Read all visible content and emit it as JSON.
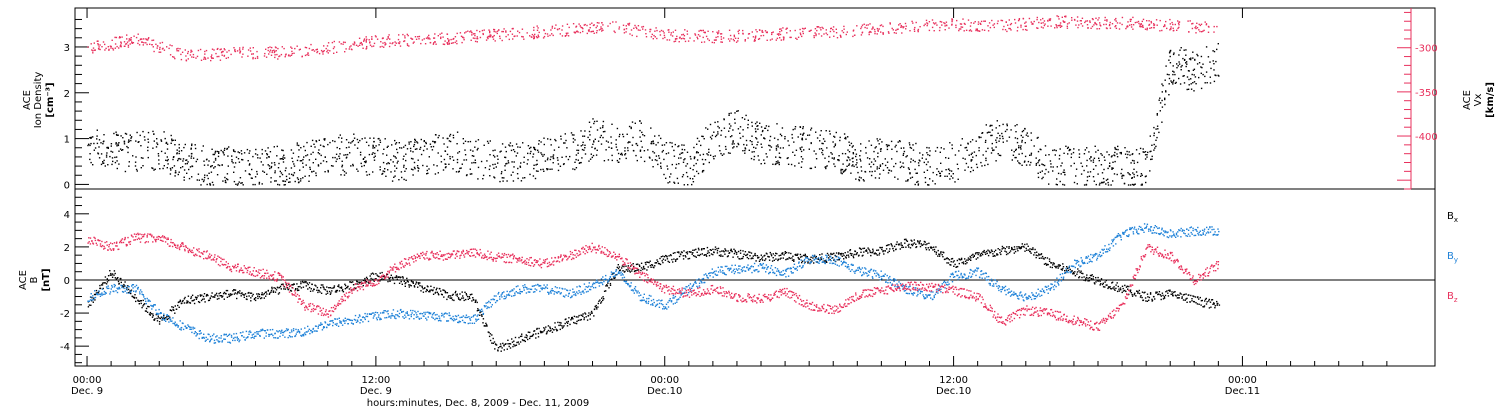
{
  "figure": {
    "x_axis_label": "hours:minutes, Dec. 8, 2009 - Dec. 11, 2009",
    "time_ticks": [
      {
        "time": "00:00",
        "date": "Dec. 9"
      },
      {
        "time": "12:00",
        "date": "Dec. 9"
      },
      {
        "time": "00:00",
        "date": "Dec.10"
      },
      {
        "time": "12:00",
        "date": "Dec.10"
      },
      {
        "time": "00:00",
        "date": "Dec.11"
      }
    ]
  },
  "colors": {
    "black": "#000000",
    "red": "#e8305c",
    "blue": "#1f82d8"
  },
  "chart_data": [
    {
      "type": "scatter",
      "panel": "top",
      "xlabel": "hours:minutes, Dec. 8, 2009 - Dec. 11, 2009",
      "x_unit": "hours since Dec. 9 00:00",
      "xlim": [
        -0.5,
        56
      ],
      "grid": false,
      "left_axis": {
        "ylabel": [
          "ACE",
          "Ion Density",
          "[cm⁻³]"
        ],
        "ylim": [
          -0.1,
          3.85
        ],
        "ticks": [
          0,
          1,
          2,
          3
        ],
        "tick_labels": [
          "0",
          "1",
          "2",
          "3"
        ]
      },
      "right_axis": {
        "ylabel": [
          "ACE",
          "Vx",
          "[km/s]"
        ],
        "ylim": [
          -460,
          -255
        ],
        "ticks": [
          -300,
          -350,
          -400
        ],
        "tick_labels": [
          "-300",
          "-350",
          "-400"
        ],
        "color": "#e8305c"
      },
      "series": [
        {
          "color": "#000000",
          "axis": "left",
          "x": [
            0,
            1,
            2,
            3,
            4,
            5,
            6,
            7,
            8,
            9,
            10,
            11,
            12,
            13,
            14,
            15,
            16,
            17,
            18,
            19,
            20,
            21,
            22,
            23,
            24,
            25,
            26,
            27,
            28,
            29,
            30,
            31,
            32,
            33,
            34,
            35,
            36,
            37,
            38,
            39,
            40,
            41,
            42,
            43,
            44,
            45,
            46,
            47
          ],
          "values": [
            0.9,
            0.8,
            0.7,
            0.8,
            0.5,
            0.4,
            0.4,
            0.4,
            0.4,
            0.5,
            0.6,
            0.7,
            0.6,
            0.5,
            0.6,
            0.8,
            0.6,
            0.5,
            0.5,
            0.6,
            0.7,
            1.0,
            0.9,
            1.0,
            0.5,
            0.4,
            1.0,
            1.2,
            0.9,
            0.9,
            0.8,
            0.8,
            0.5,
            0.6,
            0.5,
            0.4,
            0.5,
            0.8,
            1.0,
            0.8,
            0.4,
            0.4,
            0.4,
            0.4,
            0.4,
            2.6,
            2.5,
            2.7
          ]
        },
        {
          "color": "#e8305c",
          "axis": "right",
          "x": [
            0,
            2,
            4,
            6,
            8,
            10,
            12,
            14,
            16,
            18,
            20,
            22,
            24,
            26,
            28,
            30,
            32,
            34,
            36,
            38,
            40,
            42,
            44,
            46,
            47
          ],
          "values": [
            -300,
            -290,
            -308,
            -306,
            -305,
            -300,
            -292,
            -290,
            -287,
            -283,
            -279,
            -276,
            -285,
            -287,
            -285,
            -282,
            -280,
            -276,
            -273,
            -275,
            -270,
            -271,
            -272,
            -276,
            -275
          ]
        }
      ]
    },
    {
      "type": "scatter",
      "panel": "bottom",
      "xlabel": "hours:minutes, Dec. 8, 2009 - Dec. 11, 2009",
      "x_unit": "hours since Dec. 9 00:00",
      "xlim": [
        -0.5,
        56
      ],
      "ylabel": [
        "ACE",
        "B",
        "[nT]"
      ],
      "ylim": [
        -5.2,
        5.5
      ],
      "ticks": [
        -4,
        -2,
        0,
        2,
        4
      ],
      "tick_labels": [
        "-4",
        "-2",
        "0",
        "2",
        "4"
      ],
      "grid": false,
      "zero_line": true,
      "legend_position": "right",
      "series": [
        {
          "name": "Bx",
          "label_main": "B",
          "label_sub": "x",
          "color": "#000000",
          "x": [
            0,
            1,
            2,
            3,
            4,
            5,
            6,
            7,
            8,
            9,
            10,
            11,
            12,
            13,
            14,
            15,
            16,
            17,
            18,
            19,
            20,
            21,
            22,
            23,
            24,
            25,
            26,
            27,
            28,
            29,
            30,
            31,
            32,
            33,
            34,
            35,
            36,
            37,
            38,
            39,
            40,
            41,
            42,
            43,
            44,
            45,
            46,
            47
          ],
          "values": [
            -1.5,
            0.5,
            -1.0,
            -2.5,
            -1.2,
            -1.0,
            -0.8,
            -1.0,
            -0.5,
            -0.3,
            -0.6,
            -0.3,
            0.3,
            0.0,
            -0.5,
            -0.9,
            -1.0,
            -4.2,
            -3.5,
            -3.0,
            -2.5,
            -2.0,
            0.7,
            0.8,
            1.3,
            1.6,
            1.8,
            1.6,
            1.4,
            1.5,
            1.3,
            1.4,
            1.7,
            1.8,
            2.3,
            2.1,
            1.0,
            1.5,
            1.8,
            2.0,
            1.0,
            0.5,
            0.0,
            -0.5,
            -1.0,
            -0.8,
            -1.2,
            -1.5
          ]
        },
        {
          "name": "By",
          "label_main": "B",
          "label_sub": "y",
          "color": "#1f82d8",
          "x": [
            0,
            1,
            2,
            3,
            4,
            5,
            6,
            7,
            8,
            9,
            10,
            11,
            12,
            13,
            14,
            15,
            16,
            17,
            18,
            19,
            20,
            21,
            22,
            23,
            24,
            25,
            26,
            27,
            28,
            29,
            30,
            31,
            32,
            33,
            34,
            35,
            36,
            37,
            38,
            39,
            40,
            41,
            42,
            43,
            44,
            45,
            46,
            47
          ],
          "values": [
            -1.0,
            -0.5,
            -0.5,
            -2.0,
            -2.8,
            -3.5,
            -3.5,
            -3.2,
            -3.2,
            -3.1,
            -2.6,
            -2.4,
            -2.1,
            -2.0,
            -2.1,
            -2.2,
            -2.4,
            -1.0,
            -0.5,
            -0.5,
            -0.8,
            -0.3,
            0.5,
            -1.0,
            -1.5,
            -0.5,
            0.5,
            0.7,
            0.8,
            0.4,
            1.3,
            1.3,
            0.6,
            0.3,
            -0.5,
            -1.0,
            0.3,
            0.5,
            -0.5,
            -1.0,
            -0.5,
            1.0,
            1.5,
            2.8,
            3.2,
            2.8,
            3.0,
            3.0
          ]
        },
        {
          "name": "Bz",
          "label_main": "B",
          "label_sub": "z",
          "color": "#e8305c",
          "x": [
            0,
            1,
            2,
            3,
            4,
            5,
            6,
            7,
            8,
            9,
            10,
            11,
            12,
            13,
            14,
            15,
            16,
            17,
            18,
            19,
            20,
            21,
            22,
            23,
            24,
            25,
            26,
            27,
            28,
            29,
            30,
            31,
            32,
            33,
            34,
            35,
            36,
            37,
            38,
            39,
            40,
            41,
            42,
            43,
            44,
            45,
            46,
            47
          ],
          "values": [
            2.5,
            2.0,
            2.6,
            2.5,
            2.0,
            1.5,
            0.8,
            0.5,
            0.2,
            -1.5,
            -2.0,
            -0.5,
            0.0,
            1.0,
            1.5,
            1.5,
            1.7,
            1.4,
            1.3,
            1.0,
            1.5,
            2.0,
            1.5,
            0.3,
            -0.5,
            -0.8,
            -0.5,
            -1.0,
            -1.1,
            -0.7,
            -1.5,
            -1.8,
            -0.9,
            -0.6,
            -0.3,
            -0.4,
            -0.6,
            -1.0,
            -2.5,
            -1.8,
            -2.0,
            -2.4,
            -2.8,
            -1.5,
            2.0,
            1.5,
            0.0,
            1.0
          ]
        }
      ]
    }
  ]
}
